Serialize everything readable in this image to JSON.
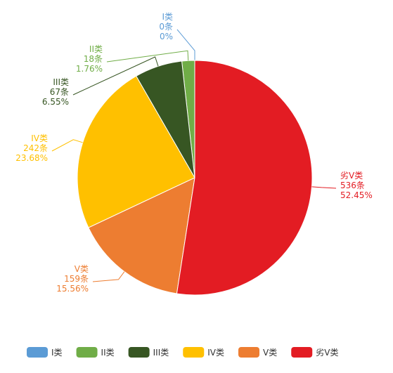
{
  "chart_data": {
    "type": "pie",
    "categories": [
      "I类",
      "II类",
      "III类",
      "IV类",
      "V类",
      "劣V类"
    ],
    "values": [
      0,
      18,
      67,
      242,
      159,
      536
    ],
    "value_labels": [
      "0条",
      "18条",
      "67条",
      "242条",
      "159条",
      "536条"
    ],
    "percent_labels": [
      "0%",
      "1.76%",
      "6.55%",
      "23.68%",
      "15.56%",
      "52.45%"
    ],
    "colors": [
      "#5b9bd5",
      "#70ad47",
      "#375623",
      "#ffc000",
      "#ed7d31",
      "#e31c23"
    ]
  }
}
